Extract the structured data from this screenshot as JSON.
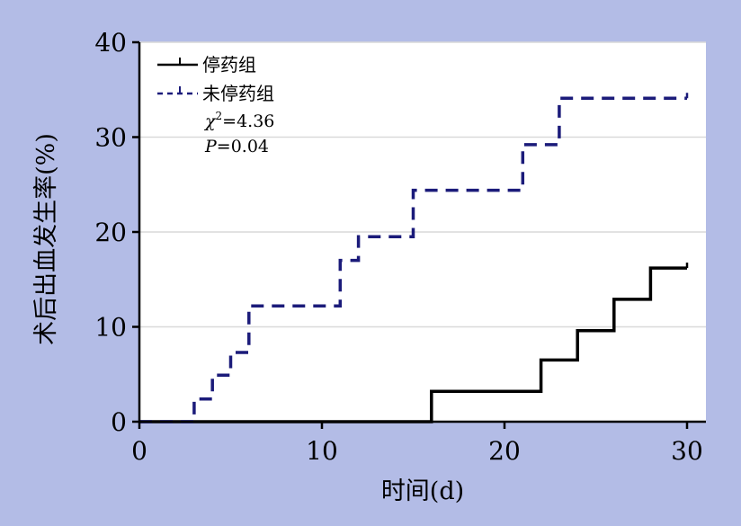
{
  "chart_data": {
    "type": "line",
    "title": "",
    "xlabel": "时间(d)",
    "ylabel": "术后出血发生率(%)",
    "xlim": [
      0,
      31
    ],
    "ylim": [
      0,
      40
    ],
    "xticks": [
      0,
      10,
      20,
      30
    ],
    "yticks": [
      0,
      10,
      20,
      30,
      40
    ],
    "grid": true,
    "legend_position": "top-left",
    "annotations": {
      "chi_symbol": "χ",
      "chi_sup": "2",
      "chi_value": "=4.36",
      "p_symbol": "P",
      "p_value": "=0.04"
    },
    "series": [
      {
        "name": "停药组",
        "color": "#000000",
        "line_style": "solid",
        "x": [
          0,
          16,
          16,
          22,
          22,
          24,
          24,
          26,
          26,
          28,
          28,
          30
        ],
        "y": [
          0,
          0,
          3.2,
          3.2,
          6.5,
          6.5,
          9.6,
          9.6,
          12.9,
          12.9,
          16.2,
          16.2
        ]
      },
      {
        "name": "未停药组",
        "color": "#1b1b7a",
        "line_style": "dashed",
        "x": [
          0,
          3,
          3,
          4,
          4,
          5,
          5,
          6,
          6,
          11,
          11,
          12,
          12,
          15,
          15,
          21,
          21,
          23,
          23,
          30
        ],
        "y": [
          0,
          0,
          2.4,
          2.4,
          4.9,
          4.9,
          7.3,
          7.3,
          12.2,
          12.2,
          17.0,
          17.0,
          19.5,
          19.5,
          24.4,
          24.4,
          29.2,
          29.2,
          34.1,
          34.1
        ]
      }
    ]
  }
}
